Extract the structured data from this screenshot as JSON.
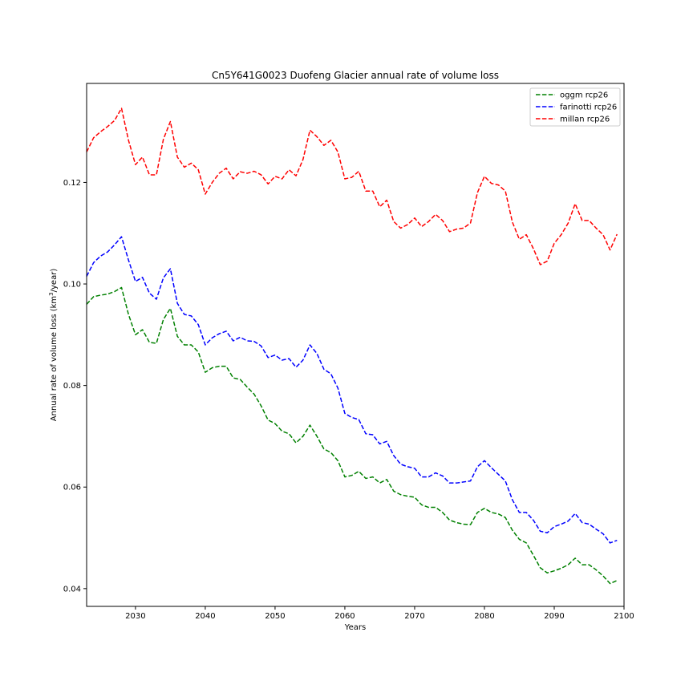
{
  "chart_data": {
    "type": "line",
    "title": "Cn5Y641G0023 Duofeng Glacier annual rate of volume loss",
    "xlabel": "Years",
    "ylabel_prefix": "Annual rate of volume loss (km",
    "ylabel_sup": "3",
    "ylabel_suffix": "/year)",
    "xlim": [
      2023,
      2100
    ],
    "ylim": [
      0.0365,
      0.1395
    ],
    "xticks": [
      2030,
      2040,
      2050,
      2060,
      2070,
      2080,
      2090,
      2100
    ],
    "yticks": [
      0.04,
      0.06,
      0.08,
      0.1,
      0.12
    ],
    "ytick_labels": [
      "0.04",
      "0.06",
      "0.08",
      "0.10",
      "0.12"
    ],
    "grid": false,
    "legend_position": "top-right",
    "line_style": "dashed",
    "x": [
      2023,
      2024,
      2025,
      2026,
      2027,
      2028,
      2029,
      2030,
      2031,
      2032,
      2033,
      2034,
      2035,
      2036,
      2037,
      2038,
      2039,
      2040,
      2041,
      2042,
      2043,
      2044,
      2045,
      2046,
      2047,
      2048,
      2049,
      2050,
      2051,
      2052,
      2053,
      2054,
      2055,
      2056,
      2057,
      2058,
      2059,
      2060,
      2061,
      2062,
      2063,
      2064,
      2065,
      2066,
      2067,
      2068,
      2069,
      2070,
      2071,
      2072,
      2073,
      2074,
      2075,
      2076,
      2077,
      2078,
      2079,
      2080,
      2081,
      2082,
      2083,
      2084,
      2085,
      2086,
      2087,
      2088,
      2089,
      2090,
      2091,
      2092,
      2093,
      2094,
      2095,
      2096,
      2097,
      2098,
      2099
    ],
    "series": [
      {
        "name": "oggm rcp26",
        "color": "#008000",
        "values": [
          0.096,
          0.0975,
          0.0978,
          0.098,
          0.0985,
          0.0993,
          0.094,
          0.09,
          0.091,
          0.0885,
          0.0883,
          0.093,
          0.0952,
          0.0897,
          0.088,
          0.088,
          0.0866,
          0.0826,
          0.0835,
          0.0838,
          0.0838,
          0.0815,
          0.0812,
          0.0797,
          0.0783,
          0.076,
          0.0732,
          0.0725,
          0.071,
          0.0705,
          0.0687,
          0.07,
          0.0722,
          0.07,
          0.0675,
          0.0668,
          0.0652,
          0.062,
          0.0623,
          0.0631,
          0.0617,
          0.062,
          0.0608,
          0.0615,
          0.0592,
          0.0585,
          0.0582,
          0.058,
          0.0565,
          0.056,
          0.056,
          0.055,
          0.0535,
          0.053,
          0.0527,
          0.0526,
          0.055,
          0.0558,
          0.055,
          0.0547,
          0.054,
          0.0515,
          0.0497,
          0.049,
          0.0466,
          0.0441,
          0.0431,
          0.0435,
          0.044,
          0.0447,
          0.046,
          0.0447,
          0.0447,
          0.0437,
          0.0425,
          0.041,
          0.0416
        ]
      },
      {
        "name": "farinotti rcp26",
        "color": "#0000ff",
        "values": [
          0.1015,
          0.1042,
          0.1055,
          0.1063,
          0.1077,
          0.1093,
          0.1047,
          0.1005,
          0.1013,
          0.0982,
          0.097,
          0.1012,
          0.103,
          0.0962,
          0.094,
          0.0937,
          0.092,
          0.088,
          0.0894,
          0.0902,
          0.0907,
          0.0888,
          0.0895,
          0.0888,
          0.0887,
          0.0878,
          0.0855,
          0.086,
          0.085,
          0.0853,
          0.0836,
          0.085,
          0.088,
          0.0863,
          0.0832,
          0.0823,
          0.0795,
          0.0745,
          0.0737,
          0.0733,
          0.0705,
          0.0703,
          0.0685,
          0.069,
          0.0662,
          0.0645,
          0.064,
          0.0637,
          0.062,
          0.062,
          0.0628,
          0.0622,
          0.0608,
          0.0608,
          0.061,
          0.0612,
          0.064,
          0.0652,
          0.0638,
          0.0625,
          0.0612,
          0.0575,
          0.055,
          0.055,
          0.0535,
          0.0513,
          0.051,
          0.0522,
          0.0527,
          0.0533,
          0.0548,
          0.053,
          0.0527,
          0.0517,
          0.0508,
          0.049,
          0.0495
        ]
      },
      {
        "name": "millan rcp26",
        "color": "#ff0000",
        "values": [
          0.126,
          0.1288,
          0.13,
          0.131,
          0.1322,
          0.1346,
          0.1283,
          0.1235,
          0.125,
          0.1215,
          0.1215,
          0.1285,
          0.132,
          0.125,
          0.123,
          0.1238,
          0.1225,
          0.1177,
          0.12,
          0.1218,
          0.1228,
          0.1207,
          0.1221,
          0.1218,
          0.1222,
          0.1215,
          0.1197,
          0.1212,
          0.1207,
          0.1225,
          0.1213,
          0.1245,
          0.1303,
          0.129,
          0.1273,
          0.1283,
          0.126,
          0.1207,
          0.121,
          0.1222,
          0.1183,
          0.1183,
          0.1152,
          0.1165,
          0.1123,
          0.111,
          0.1117,
          0.113,
          0.1113,
          0.1123,
          0.1137,
          0.1125,
          0.1103,
          0.1108,
          0.111,
          0.112,
          0.118,
          0.1212,
          0.1198,
          0.1195,
          0.1183,
          0.1122,
          0.1088,
          0.1097,
          0.107,
          0.1038,
          0.1045,
          0.108,
          0.1097,
          0.112,
          0.1158,
          0.1125,
          0.1125,
          0.111,
          0.1097,
          0.1067,
          0.1098
        ]
      }
    ]
  }
}
